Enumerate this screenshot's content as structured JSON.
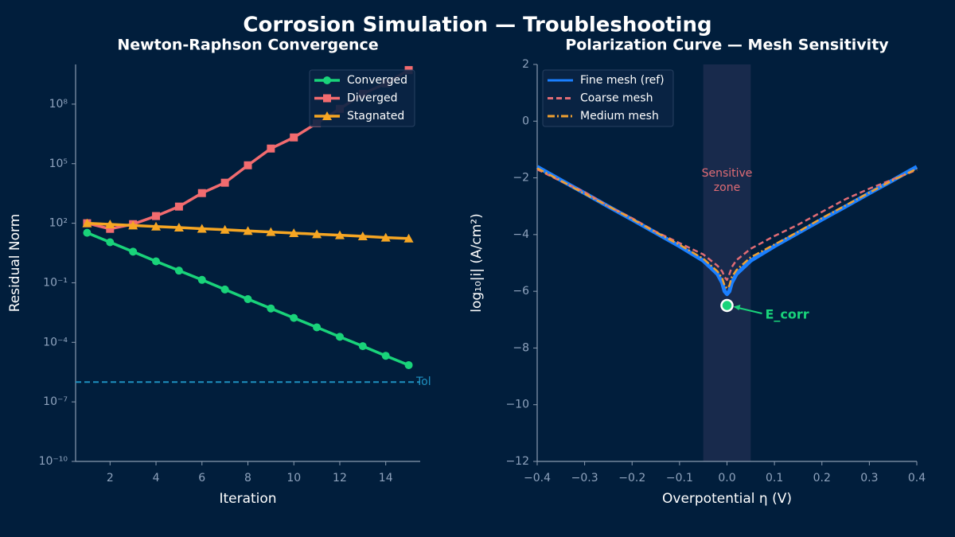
{
  "title": "Corrosion Simulation — Troubleshooting",
  "chart_data": [
    {
      "type": "line",
      "title": "Newton-Raphson Convergence",
      "x_label": "Iteration",
      "y_label": "Residual Norm",
      "yscale": "log",
      "legend": "upper right",
      "x": [
        1,
        2,
        3,
        4,
        5,
        6,
        7,
        8,
        9,
        10,
        11,
        12,
        13,
        14,
        15
      ],
      "xlim": [
        0.5,
        15.5
      ],
      "xticks": [
        2,
        4,
        6,
        8,
        10,
        12,
        14
      ],
      "ylim": [
        1e-10,
        10000000000.0
      ],
      "yticks": [
        {
          "value": 1e-10,
          "label": "10⁻¹⁰"
        },
        {
          "value": 1e-07,
          "label": "10⁻⁷"
        },
        {
          "value": 0.0001,
          "label": "10⁻⁴"
        },
        {
          "value": 0.1,
          "label": "10⁻¹"
        },
        {
          "value": 100,
          "label": "10²"
        },
        {
          "value": 100000,
          "label": "10⁵"
        },
        {
          "value": 100000000,
          "label": "10⁸"
        }
      ],
      "series": [
        {
          "name": "Converged",
          "color": "#19d37a",
          "marker": "circle",
          "values": [
            33,
            11,
            3.7,
            1.2,
            0.41,
            0.14,
            0.046,
            0.015,
            0.0051,
            0.0017,
            0.00057,
            0.00019,
            6.4e-05,
            2.1e-05,
            7.1e-06
          ]
        },
        {
          "name": "Diverged",
          "color": "#f26b6f",
          "marker": "square",
          "values": [
            100,
            52,
            90,
            230,
            690,
            3300,
            11000,
            83000,
            580000,
            2100000,
            11000000,
            58000000,
            330000000,
            1100000000,
            5200000000
          ]
        },
        {
          "name": "Stagnated",
          "color": "#f6a623",
          "marker": "triangle",
          "values": [
            100,
            88,
            77,
            68,
            61,
            53,
            47,
            41,
            36,
            32,
            28,
            25,
            22,
            19,
            17
          ]
        }
      ],
      "hline": {
        "y": 1e-06,
        "label": "Tol",
        "color": "#1e90c0"
      }
    },
    {
      "type": "line",
      "title": "Polarization Curve — Mesh Sensitivity",
      "x_label": "Overpotential  η (V)",
      "y_label": "log₁₀|i|  (A/cm²)",
      "legend": "upper left",
      "x": [
        -0.4,
        -0.35,
        -0.3,
        -0.25,
        -0.2,
        -0.15,
        -0.1,
        -0.05,
        -0.02,
        -0.01,
        -0.005,
        0,
        0.005,
        0.01,
        0.02,
        0.05,
        0.1,
        0.15,
        0.2,
        0.25,
        0.3,
        0.35,
        0.4
      ],
      "xlim": [
        -0.4,
        0.4
      ],
      "xticks": [
        {
          "value": -0.4,
          "label": "−0.4"
        },
        {
          "value": -0.3,
          "label": "−0.3"
        },
        {
          "value": -0.2,
          "label": "−0.2"
        },
        {
          "value": -0.1,
          "label": "−0.1"
        },
        {
          "value": 0,
          "label": "0.0"
        },
        0.1,
        0.2,
        0.3,
        0.4
      ],
      "ylim": [
        -12,
        2
      ],
      "yticks": [
        {
          "value": -12,
          "label": "−12"
        },
        {
          "value": -10,
          "label": "−10"
        },
        {
          "value": -8,
          "label": "−8"
        },
        {
          "value": -6,
          "label": "−6"
        },
        {
          "value": -4,
          "label": "−4"
        },
        {
          "value": -2,
          "label": "−2"
        },
        0,
        2
      ],
      "series": [
        {
          "name": "Fine mesh (ref)",
          "color": "#1a7fff",
          "linestyle": "solid",
          "values": [
            -1.61,
            -2.08,
            -2.54,
            -3.01,
            -3.47,
            -3.94,
            -4.41,
            -4.92,
            -5.39,
            -5.7,
            -6.0,
            -6.1,
            -6.0,
            -5.7,
            -5.39,
            -4.92,
            -4.41,
            -3.94,
            -3.47,
            -3.01,
            -2.54,
            -2.08,
            -1.61
          ]
        },
        {
          "name": "Coarse mesh",
          "color": "#e06c75",
          "linestyle": "dashed",
          "values": [
            -1.7,
            -2.12,
            -2.5,
            -3.0,
            -3.42,
            -3.9,
            -4.3,
            -4.7,
            -5.1,
            -5.3,
            -5.5,
            -5.6,
            -5.4,
            -5.15,
            -4.9,
            -4.5,
            -4.05,
            -3.65,
            -3.2,
            -2.75,
            -2.38,
            -2.05,
            -1.72
          ]
        },
        {
          "name": "Medium mesh",
          "color": "#f0a030",
          "linestyle": "dashdot",
          "values": [
            -1.66,
            -2.1,
            -2.56,
            -3.0,
            -3.45,
            -3.92,
            -4.36,
            -4.85,
            -5.3,
            -5.55,
            -5.8,
            -5.9,
            -5.8,
            -5.5,
            -5.25,
            -4.8,
            -4.35,
            -3.9,
            -3.42,
            -2.97,
            -2.52,
            -2.08,
            -1.68
          ]
        }
      ],
      "span": {
        "x": [
          -0.05,
          0.05
        ],
        "label": [
          "Sensitive",
          "zone"
        ],
        "color": "#e06c75"
      },
      "marker_point": {
        "x": 0,
        "y": -6.5,
        "label": "E_corr",
        "color": "#19d37a"
      }
    }
  ]
}
